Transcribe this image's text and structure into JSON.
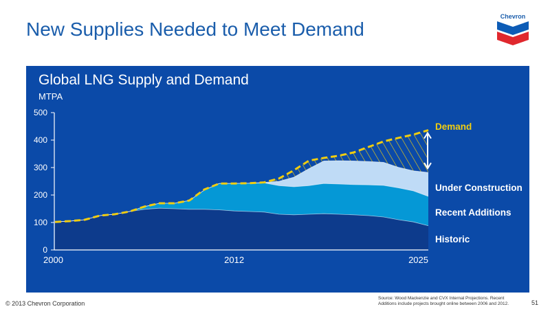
{
  "slide": {
    "title": "New Supplies Needed to Meet Demand",
    "logo_text": "Chevron",
    "footer": "© 2013 Chevron Corporation",
    "source": "Source:   Wood Mackenzie and CVX Internal Projections.  Recent Additions include projects brought online between 2006 and 2012.",
    "page_number": "51"
  },
  "colors": {
    "panel": "#0b4aa8",
    "historic": "#0d3b8c",
    "recent_additions": "#0598d6",
    "under_construction": "#bfdbf6",
    "demand": "#f2cd0f"
  },
  "chart_data": {
    "type": "area",
    "title": "Global LNG Supply and Demand",
    "ylabel": "MTPA",
    "ylim": [
      0,
      500
    ],
    "yticks": [
      0,
      100,
      200,
      300,
      400,
      500
    ],
    "xlim": [
      2000,
      2025
    ],
    "xticks": [
      2000,
      2012,
      2025
    ],
    "stacked": true,
    "grid": false,
    "x": [
      2000,
      2001,
      2002,
      2003,
      2004,
      2005,
      2006,
      2007,
      2008,
      2009,
      2010,
      2011,
      2012,
      2013,
      2014,
      2015,
      2016,
      2017,
      2018,
      2019,
      2020,
      2021,
      2022,
      2023,
      2024,
      2025
    ],
    "series": [
      {
        "name": "Historic",
        "values": [
          102,
          105,
          110,
          125,
          130,
          140,
          148,
          152,
          150,
          148,
          148,
          146,
          142,
          140,
          138,
          130,
          128,
          130,
          132,
          130,
          128,
          125,
          120,
          110,
          102,
          88
        ]
      },
      {
        "name": "Recent  Additions",
        "values": [
          0,
          0,
          0,
          0,
          0,
          0,
          10,
          18,
          20,
          32,
          70,
          96,
          100,
          103,
          106,
          104,
          102,
          104,
          110,
          110,
          110,
          112,
          115,
          116,
          113,
          107
        ]
      },
      {
        "name": "Under Construction",
        "values": [
          0,
          0,
          0,
          0,
          0,
          0,
          0,
          0,
          0,
          0,
          0,
          0,
          0,
          0,
          2,
          16,
          35,
          62,
          82,
          85,
          86,
          85,
          84,
          75,
          73,
          87
        ]
      }
    ],
    "demand": {
      "name": "Demand",
      "values": [
        102,
        105,
        110,
        125,
        130,
        140,
        158,
        170,
        170,
        180,
        220,
        242,
        242,
        243,
        246,
        260,
        290,
        325,
        335,
        343,
        355,
        375,
        395,
        408,
        420,
        436
      ]
    },
    "gap_annotation": {
      "from": 287,
      "to": 436,
      "label": "Demand"
    },
    "legend": [
      "Demand",
      "Under Construction",
      "Recent  Additions",
      "Historic"
    ],
    "legend_position": "right"
  }
}
